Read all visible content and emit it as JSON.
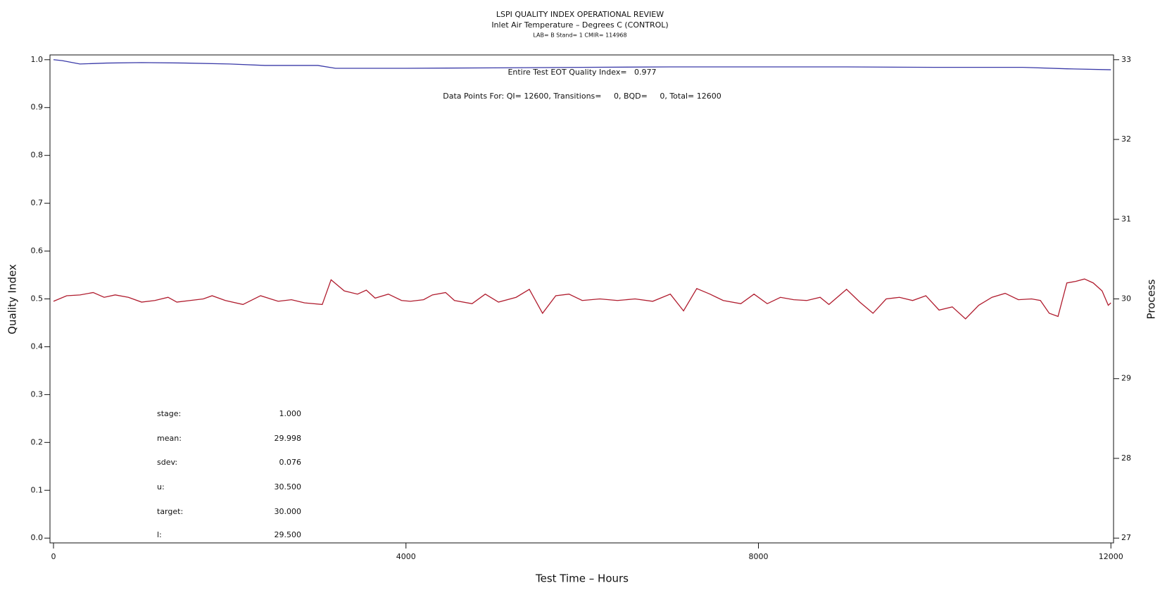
{
  "chart_data": {
    "type": "line",
    "title": "LSPI QUALITY INDEX OPERATIONAL REVIEW",
    "subtitle": "Inlet Air Temperature – Degrees C (CONTROL)",
    "subtitle2": "LAB= B Stand= 1 CMIR= 114968",
    "xlabel": "Test Time – Hours",
    "ylabel": "Quality Index",
    "y2label": "Process",
    "annotations": [
      "Entire Test EOT Quality Index=   0.977",
      "Data Points For: QI= 12600, Transitions=     0, BQD=     0, Total= 12600"
    ],
    "stats": [
      [
        "stage:",
        "1.000"
      ],
      [
        "mean:",
        "29.998"
      ],
      [
        "sdev:",
        "0.076"
      ],
      [
        "u:",
        "30.500"
      ],
      [
        "target:",
        "30.000"
      ],
      [
        "l:",
        "29.500"
      ]
    ],
    "xlim": [
      -40,
      12030
    ],
    "xticks": [
      0,
      4000,
      8000,
      12000
    ],
    "ylim": [
      -0.01,
      1.01
    ],
    "yticks": [
      {
        "value": 0,
        "label": "0.0"
      },
      0.1,
      0.2,
      0.3,
      0.4,
      0.5,
      0.6,
      0.7,
      0.8,
      0.9,
      {
        "value": 1,
        "label": "1.0"
      }
    ],
    "y2lim": [
      26.94,
      33.06
    ],
    "y2ticks": [
      27,
      28,
      29,
      30,
      31,
      32,
      33
    ],
    "series": [
      {
        "name": "Quality Index",
        "color": "#3a3aa8",
        "axis": "y",
        "x": [
          0,
          100,
          300,
          600,
          1000,
          1500,
          2000,
          2400,
          2600,
          3000,
          3200,
          4000,
          5000,
          6000,
          7000,
          8000,
          9000,
          10000,
          11000,
          11500,
          12000
        ],
        "values": [
          1.0,
          0.998,
          0.991,
          0.993,
          0.994,
          0.993,
          0.991,
          0.988,
          0.988,
          0.988,
          0.982,
          0.982,
          0.983,
          0.984,
          0.985,
          0.985,
          0.985,
          0.984,
          0.984,
          0.981,
          0.979
        ]
      },
      {
        "name": "Process",
        "color": "#b01c2e",
        "axis": "y2",
        "x": [
          0,
          150,
          300,
          450,
          575,
          700,
          850,
          1000,
          1150,
          1300,
          1400,
          1550,
          1700,
          1800,
          1950,
          2150,
          2350,
          2550,
          2700,
          2850,
          3050,
          3150,
          3300,
          3450,
          3550,
          3650,
          3800,
          3950,
          4050,
          4200,
          4300,
          4450,
          4550,
          4750,
          4900,
          5050,
          5250,
          5400,
          5550,
          5700,
          5850,
          6000,
          6200,
          6400,
          6600,
          6800,
          7000,
          7150,
          7300,
          7450,
          7600,
          7800,
          7950,
          8100,
          8250,
          8400,
          8550,
          8700,
          8800,
          9000,
          9150,
          9300,
          9450,
          9600,
          9750,
          9900,
          10050,
          10200,
          10350,
          10500,
          10650,
          10800,
          10950,
          11100,
          11200,
          11300,
          11400,
          11500,
          11600,
          11700,
          11800,
          11900,
          11970,
          12000
        ],
        "values": [
          29.97,
          30.04,
          30.05,
          30.08,
          30.02,
          30.05,
          30.02,
          29.96,
          29.98,
          30.02,
          29.96,
          29.98,
          30.0,
          30.04,
          29.98,
          29.93,
          30.04,
          29.97,
          29.99,
          29.95,
          29.93,
          30.24,
          30.1,
          30.06,
          30.11,
          30.01,
          30.06,
          29.98,
          29.97,
          29.99,
          30.05,
          30.08,
          29.98,
          29.94,
          30.06,
          29.96,
          30.02,
          30.12,
          29.82,
          30.04,
          30.06,
          29.98,
          30.0,
          29.98,
          30.0,
          29.97,
          30.06,
          29.85,
          30.13,
          30.06,
          29.98,
          29.94,
          30.06,
          29.94,
          30.02,
          29.99,
          29.98,
          30.02,
          29.93,
          30.12,
          29.96,
          29.82,
          30.0,
          30.02,
          29.98,
          30.04,
          29.86,
          29.9,
          29.75,
          29.92,
          30.02,
          30.07,
          29.99,
          30.0,
          29.98,
          29.82,
          29.78,
          30.2,
          30.22,
          30.25,
          30.2,
          30.1,
          29.92,
          29.95
        ]
      }
    ]
  }
}
